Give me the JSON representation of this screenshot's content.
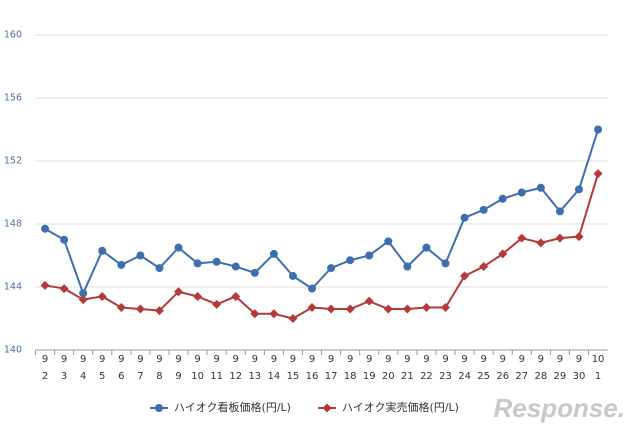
{
  "chart_data": {
    "type": "line",
    "categories": [
      [
        "9",
        "2"
      ],
      [
        "9",
        "3"
      ],
      [
        "9",
        "4"
      ],
      [
        "9",
        "5"
      ],
      [
        "9",
        "6"
      ],
      [
        "9",
        "7"
      ],
      [
        "9",
        "8"
      ],
      [
        "9",
        "9"
      ],
      [
        "9",
        "10"
      ],
      [
        "9",
        "11"
      ],
      [
        "9",
        "12"
      ],
      [
        "9",
        "13"
      ],
      [
        "9",
        "14"
      ],
      [
        "9",
        "15"
      ],
      [
        "9",
        "16"
      ],
      [
        "9",
        "17"
      ],
      [
        "9",
        "18"
      ],
      [
        "9",
        "19"
      ],
      [
        "9",
        "20"
      ],
      [
        "9",
        "21"
      ],
      [
        "9",
        "22"
      ],
      [
        "9",
        "23"
      ],
      [
        "9",
        "24"
      ],
      [
        "9",
        "25"
      ],
      [
        "9",
        "26"
      ],
      [
        "9",
        "27"
      ],
      [
        "9",
        "28"
      ],
      [
        "9",
        "29"
      ],
      [
        "9",
        "30"
      ],
      [
        "10",
        "1"
      ]
    ],
    "series": [
      {
        "name": "ハイオク看板価格(円/L)",
        "color": "#3d6fb0",
        "marker": "circle",
        "values": [
          147.7,
          147.0,
          143.6,
          146.3,
          145.4,
          146.0,
          145.2,
          146.5,
          145.5,
          145.6,
          145.3,
          144.9,
          146.1,
          144.7,
          143.9,
          145.2,
          145.7,
          146.0,
          146.9,
          145.3,
          146.5,
          145.5,
          148.4,
          148.9,
          149.6,
          150.0,
          150.3,
          148.8,
          150.2,
          154.0
        ]
      },
      {
        "name": "ハイオク実売価格(円/L)",
        "color": "#b5393a",
        "marker": "diamond",
        "values": [
          144.1,
          143.9,
          143.2,
          143.4,
          142.7,
          142.6,
          142.5,
          143.7,
          143.4,
          142.9,
          143.4,
          142.3,
          142.3,
          142.0,
          142.7,
          142.6,
          142.6,
          143.1,
          142.6,
          142.6,
          142.7,
          142.7,
          144.7,
          145.3,
          146.1,
          147.1,
          146.8,
          147.1,
          147.2,
          151.2
        ]
      }
    ],
    "ylim": [
      140,
      160
    ],
    "yticks": [
      140,
      144,
      148,
      152,
      156,
      160
    ],
    "grid": true,
    "legend": "bottom",
    "watermark": "Response."
  }
}
